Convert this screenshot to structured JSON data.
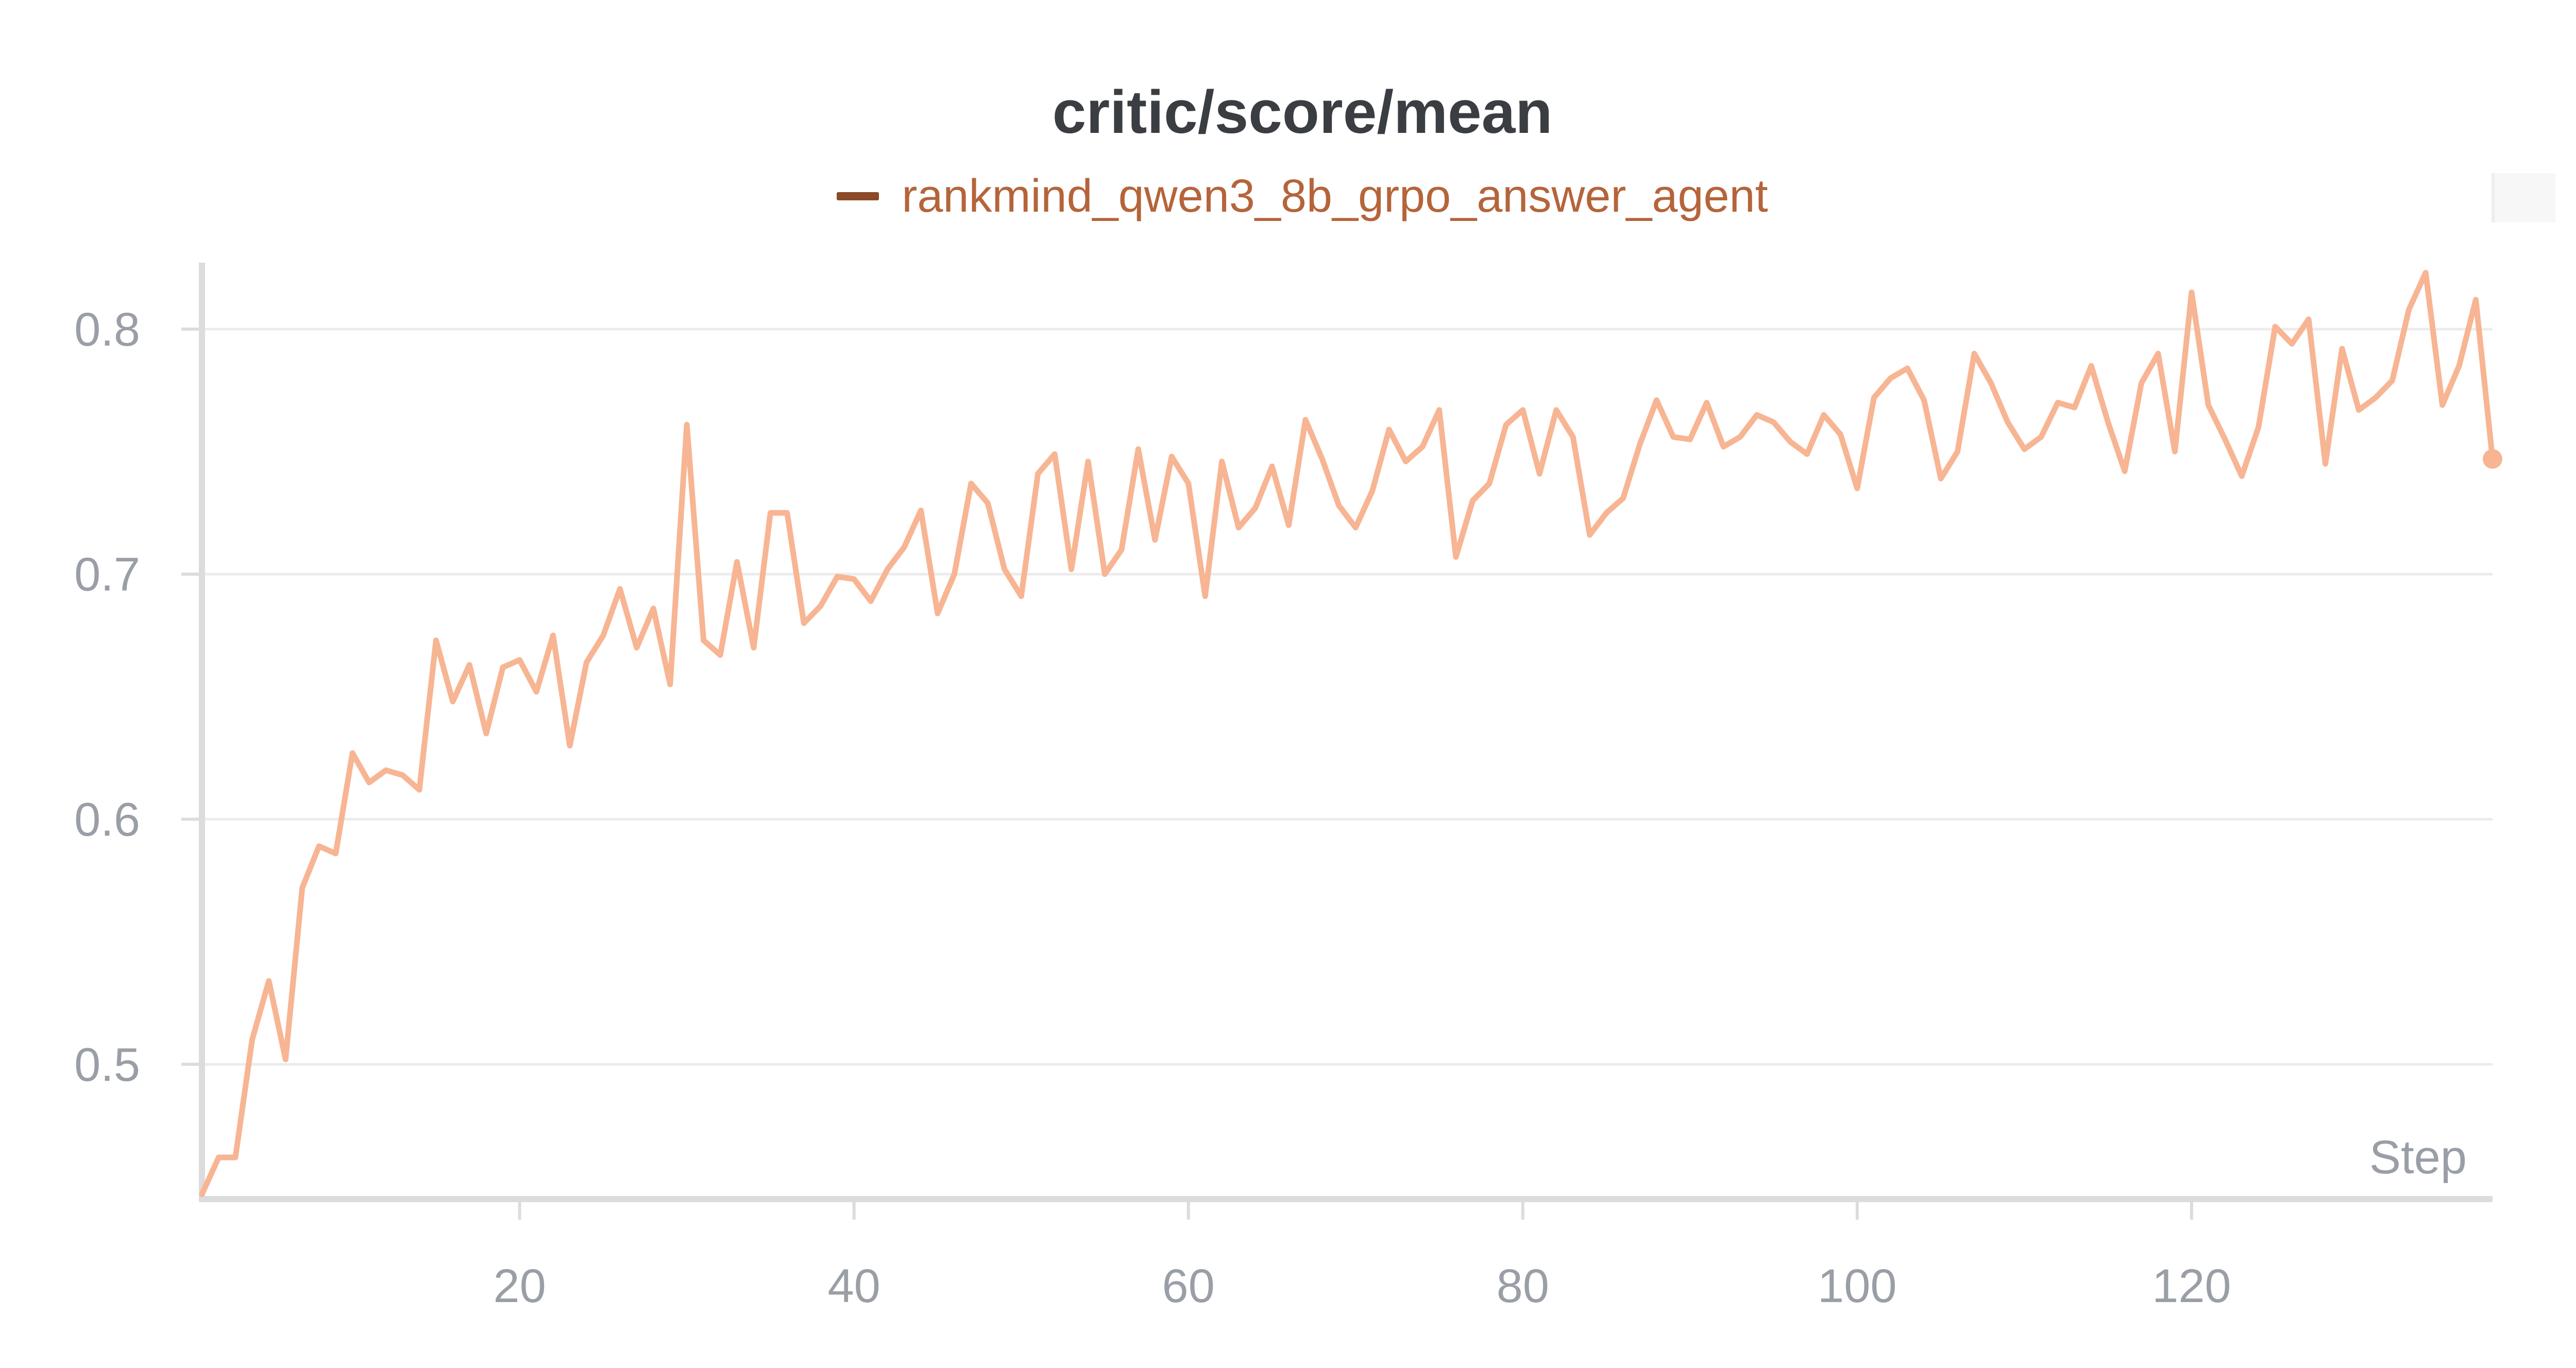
{
  "chart_data": {
    "type": "line",
    "title": "critic/score/mean",
    "xlabel": "Step",
    "ylabel": "",
    "xlim": [
      1,
      138
    ],
    "ylim": [
      0.445,
      0.825
    ],
    "x_ticks": [
      20,
      40,
      60,
      80,
      100,
      120
    ],
    "y_ticks": [
      0.5,
      0.6,
      0.7,
      0.8
    ],
    "grid": true,
    "legend_position": "top-center",
    "series": [
      {
        "name": "rankmind_qwen3_8b_grpo_answer_agent",
        "color": "#f7b593",
        "legend_color": "#8b4a28",
        "x": [
          1,
          2,
          3,
          4,
          5,
          6,
          7,
          8,
          9,
          10,
          11,
          12,
          13,
          14,
          15,
          16,
          17,
          18,
          19,
          20,
          21,
          22,
          23,
          24,
          25,
          26,
          27,
          28,
          29,
          30,
          31,
          32,
          33,
          34,
          35,
          36,
          37,
          38,
          39,
          40,
          41,
          42,
          43,
          44,
          45,
          46,
          47,
          48,
          49,
          50,
          51,
          52,
          53,
          54,
          55,
          56,
          57,
          58,
          59,
          60,
          61,
          62,
          63,
          64,
          65,
          66,
          67,
          68,
          69,
          70,
          71,
          72,
          73,
          74,
          75,
          76,
          77,
          78,
          79,
          80,
          81,
          82,
          83,
          84,
          85,
          86,
          87,
          88,
          89,
          90,
          91,
          92,
          93,
          94,
          95,
          96,
          97,
          98,
          99,
          100,
          101,
          102,
          103,
          104,
          105,
          106,
          107,
          108,
          109,
          110,
          111,
          112,
          113,
          114,
          115,
          116,
          117,
          118,
          119,
          120,
          121,
          122,
          123,
          124,
          125,
          126,
          127,
          128,
          129,
          130,
          131,
          132,
          133,
          134,
          135,
          136,
          137,
          138
        ],
        "y": [
          0.447,
          0.462,
          0.462,
          0.51,
          0.534,
          0.502,
          0.572,
          0.589,
          0.586,
          0.627,
          0.615,
          0.62,
          0.618,
          0.612,
          0.673,
          0.648,
          0.663,
          0.635,
          0.662,
          0.665,
          0.652,
          0.675,
          0.63,
          0.664,
          0.675,
          0.694,
          0.67,
          0.686,
          0.655,
          0.761,
          0.673,
          0.667,
          0.705,
          0.67,
          0.725,
          0.725,
          0.68,
          0.687,
          0.699,
          0.698,
          0.689,
          0.702,
          0.711,
          0.726,
          0.684,
          0.7,
          0.737,
          0.729,
          0.702,
          0.691,
          0.741,
          0.749,
          0.702,
          0.746,
          0.7,
          0.71,
          0.751,
          0.714,
          0.748,
          0.737,
          0.691,
          0.746,
          0.719,
          0.727,
          0.744,
          0.72,
          0.763,
          0.747,
          0.728,
          0.719,
          0.734,
          0.759,
          0.746,
          0.752,
          0.767,
          0.707,
          0.73,
          0.737,
          0.761,
          0.767,
          0.741,
          0.767,
          0.756,
          0.716,
          0.725,
          0.731,
          0.753,
          0.771,
          0.756,
          0.755,
          0.77,
          0.752,
          0.756,
          0.765,
          0.762,
          0.754,
          0.749,
          0.765,
          0.757,
          0.735,
          0.772,
          0.78,
          0.784,
          0.771,
          0.739,
          0.75,
          0.79,
          0.778,
          0.762,
          0.751,
          0.756,
          0.77,
          0.768,
          0.785,
          0.762,
          0.742,
          0.778,
          0.79,
          0.75,
          0.815,
          0.769,
          0.755,
          0.74,
          0.76,
          0.801,
          0.794,
          0.804,
          0.745,
          0.792,
          0.767,
          0.772,
          0.779,
          0.808,
          0.823,
          0.769,
          0.785,
          0.812,
          0.747
        ]
      }
    ]
  }
}
